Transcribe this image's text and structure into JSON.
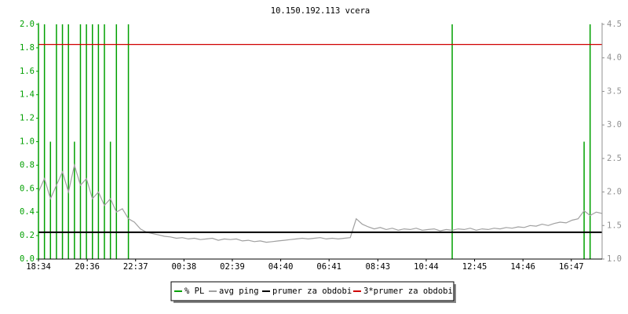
{
  "chart_data": {
    "type": "ping",
    "title": "10.150.192.113 vcera",
    "x": [
      "18:34",
      "18:49",
      "19:04",
      "19:19",
      "19:34",
      "19:49",
      "20:04",
      "20:19",
      "20:34",
      "20:49",
      "21:04",
      "21:19",
      "21:34",
      "21:49",
      "22:04",
      "22:19",
      "22:34",
      "22:49",
      "23:04",
      "23:19",
      "23:34",
      "23:49",
      "00:04",
      "00:19",
      "00:34",
      "00:49",
      "01:04",
      "01:19",
      "01:34",
      "01:49",
      "02:04",
      "02:19",
      "02:34",
      "02:49",
      "03:04",
      "03:19",
      "03:34",
      "03:49",
      "04:04",
      "04:19",
      "04:34",
      "04:49",
      "05:04",
      "05:19",
      "05:34",
      "05:49",
      "06:04",
      "06:19",
      "06:34",
      "06:49",
      "07:04",
      "07:19",
      "07:34",
      "07:49",
      "08:04",
      "08:19",
      "08:34",
      "08:49",
      "09:04",
      "09:19",
      "09:34",
      "09:49",
      "10:04",
      "10:19",
      "10:34",
      "10:49",
      "11:04",
      "11:19",
      "11:34",
      "11:49",
      "12:04",
      "12:19",
      "12:34",
      "12:49",
      "13:04",
      "13:19",
      "13:34",
      "13:49",
      "14:04",
      "14:19",
      "14:34",
      "14:49",
      "15:04",
      "15:19",
      "15:34",
      "15:49",
      "16:04",
      "16:19",
      "16:34",
      "16:49",
      "17:04",
      "17:19",
      "17:34",
      "17:49",
      "18:04"
    ],
    "xlim": [
      "18:34",
      "18:04"
    ],
    "xticks": [
      "18:34",
      "20:36",
      "22:37",
      "00:38",
      "02:39",
      "04:40",
      "06:41",
      "08:43",
      "10:44",
      "12:45",
      "14:46",
      "16:47"
    ],
    "ylim": [
      0,
      2
    ],
    "yticks": [
      {
        "value": 0,
        "label": "0.0"
      },
      0.2,
      0.4,
      0.6,
      0.8,
      {
        "value": 1,
        "label": "1.0"
      },
      1.2,
      1.4,
      1.6,
      1.8,
      {
        "value": 2,
        "label": "2.0"
      }
    ],
    "y2lim": [
      1,
      4.5
    ],
    "y2ticks": [
      {
        "value": 1,
        "label": "1.0"
      },
      1.5,
      {
        "value": 2,
        "label": "2.0"
      },
      2.5,
      {
        "value": 3,
        "label": "3.0"
      },
      3.5,
      {
        "value": 4,
        "label": "4.0"
      },
      4.5
    ],
    "series": [
      {
        "name": "% PL",
        "color": "#00a000",
        "style": "spikes",
        "values": [
          2,
          2,
          1,
          2,
          2,
          2,
          1,
          2,
          2,
          2,
          2,
          2,
          1,
          2,
          0,
          2,
          0,
          0,
          0,
          0,
          0,
          0,
          0,
          0,
          0,
          0,
          0,
          0,
          0,
          0,
          0,
          0,
          0,
          0,
          0,
          0,
          0,
          0,
          0,
          0,
          0,
          0,
          0,
          0,
          0,
          0,
          0,
          0,
          0,
          0,
          0,
          0,
          0,
          0,
          0,
          0,
          0,
          0,
          0,
          0,
          0,
          0,
          0,
          0,
          0,
          0,
          0,
          0,
          0,
          2,
          0,
          0,
          0,
          0,
          0,
          0,
          0,
          0,
          0,
          0,
          0,
          0,
          0,
          0,
          0,
          0,
          0,
          0,
          0,
          0,
          0,
          1,
          2,
          0,
          0
        ]
      },
      {
        "name": "avg ping",
        "color": "#a0a0a0",
        "style": "line",
        "axis": "y2",
        "values": [
          2.0,
          2.2,
          1.9,
          2.1,
          2.3,
          2.0,
          2.4,
          2.1,
          2.2,
          1.9,
          2.0,
          1.8,
          1.9,
          1.7,
          1.75,
          1.6,
          1.55,
          1.45,
          1.4,
          1.38,
          1.36,
          1.34,
          1.33,
          1.31,
          1.32,
          1.3,
          1.31,
          1.29,
          1.3,
          1.31,
          1.28,
          1.3,
          1.29,
          1.3,
          1.27,
          1.28,
          1.26,
          1.27,
          1.25,
          1.26,
          1.27,
          1.28,
          1.29,
          1.3,
          1.31,
          1.3,
          1.31,
          1.32,
          1.3,
          1.31,
          1.3,
          1.31,
          1.32,
          1.6,
          1.52,
          1.48,
          1.45,
          1.47,
          1.44,
          1.46,
          1.43,
          1.45,
          1.44,
          1.46,
          1.43,
          1.44,
          1.45,
          1.42,
          1.44,
          1.43,
          1.45,
          1.44,
          1.46,
          1.43,
          1.45,
          1.44,
          1.46,
          1.45,
          1.47,
          1.46,
          1.48,
          1.47,
          1.5,
          1.49,
          1.52,
          1.5,
          1.53,
          1.55,
          1.54,
          1.58,
          1.6,
          1.72,
          1.65,
          1.7,
          1.68
        ]
      },
      {
        "name": "prumer za obdobi",
        "color": "#000000",
        "style": "hline",
        "axis": "y2",
        "value": 1.4
      },
      {
        "name": "3*prumer za obdobi",
        "color": "#d00000",
        "style": "hline",
        "axis": "y2",
        "value": 4.2
      }
    ]
  }
}
